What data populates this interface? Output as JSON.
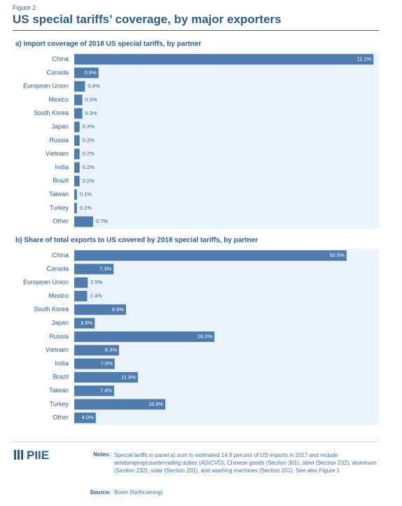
{
  "figure_label": "Figure 2",
  "title": "US special tariffs’ coverage, by major exporters",
  "chart_data": [
    {
      "type": "bar",
      "orientation": "horizontal",
      "title": "a) Import coverage of 2018 US special tariffs, by partner",
      "categories": [
        "China",
        "Canada",
        "European Union",
        "Mexico",
        "South Korea",
        "Japan",
        "Russia",
        "Vietnam",
        "India",
        "Brazil",
        "Taiwan",
        "Turkey",
        "Other"
      ],
      "values": [
        11.1,
        0.9,
        0.4,
        0.3,
        0.3,
        0.2,
        0.2,
        0.2,
        0.2,
        0.2,
        0.1,
        0.1,
        0.7
      ],
      "value_labels": [
        "11.1%",
        "0.9%",
        "0.4%",
        "0.3%",
        "0.3%",
        "0.2%",
        "0.2%",
        "0.2%",
        "0.2%",
        "0.2%",
        "0.1%",
        "0.1%",
        "0.7%"
      ],
      "color": "#4f7cac",
      "background": "#eaf3fb",
      "xlim": [
        0,
        11.3
      ]
    },
    {
      "type": "bar",
      "orientation": "horizontal",
      "title": "b) Share of total exports to US covered by 2018 special tariffs, by partner",
      "categories": [
        "China",
        "Canada",
        "European Union",
        "Mexico",
        "South Korea",
        "Japan",
        "Russia",
        "Vietnam",
        "India",
        "Brazil",
        "Taiwan",
        "Turkey",
        "Other"
      ],
      "values": [
        50.5,
        7.3,
        2.5,
        2.4,
        9.6,
        3.8,
        26.0,
        8.3,
        7.5,
        11.8,
        7.4,
        16.9,
        4.0
      ],
      "value_labels": [
        "50.5%",
        "7.3%",
        "2.5%",
        "2.4%",
        "9.6%",
        "3.8%",
        "26.0%",
        "8.3%",
        "7.5%",
        "11.8%",
        "7.4%",
        "16.9%",
        "4.0%"
      ],
      "color": "#4f7cac",
      "background": "#eaf3fb",
      "xlim": [
        0,
        56.5
      ]
    }
  ],
  "logo": "PIIE",
  "notes_label": "Notes:",
  "notes": "Special tariffs in panel a) sum to estimated 14.9 percent of US imports in 2017 and include antidumping/countervailing duties (AD/CVD); Chinese goods (Section 301), steel (Section 232), aluminum (Section 232), solar (Section 201), and washing machines (Section 201). See also Figure 1.",
  "source_label": "Source:",
  "source": "Bown (forthcoming)"
}
